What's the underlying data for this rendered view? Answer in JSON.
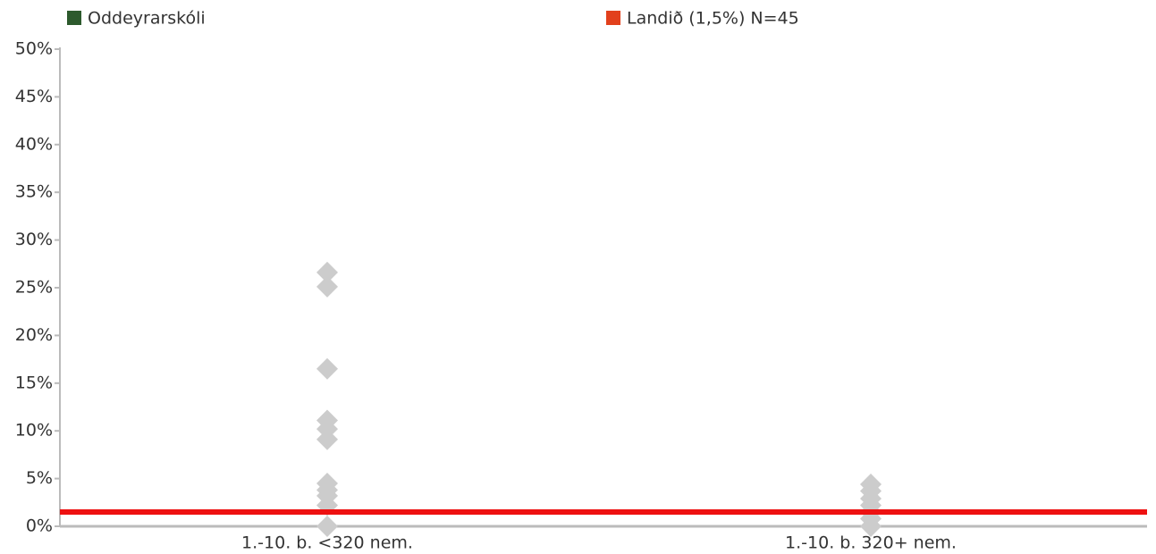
{
  "chart_data": {
    "type": "scatter",
    "categories": [
      "1.-10. b. <320 nem.",
      "1.-10. b. 320+ nem."
    ],
    "values": [
      [
        26.6,
        25.1,
        16.5,
        11.1,
        10.2,
        9.1,
        4.5,
        3.8,
        3.2,
        2.2,
        0
      ],
      [
        4.4,
        3.7,
        2.9,
        2.2,
        1.5,
        0.8,
        0
      ]
    ],
    "color": "#cccccc",
    "legend": [
      {
        "name": "Oddeyrarskóli",
        "color": "#2d5a2d"
      },
      {
        "name": "Landið (1,5%) N=45",
        "color": "#e2401c"
      }
    ],
    "reference_line": {
      "value": 1.5,
      "color": "#ee1111"
    },
    "ylim": [
      0,
      50
    ],
    "yticks": [
      {
        "value": 0,
        "label": "0%"
      },
      {
        "value": 5,
        "label": "5%"
      },
      {
        "value": 10,
        "label": "10%"
      },
      {
        "value": 15,
        "label": "15%"
      },
      {
        "value": 20,
        "label": "20%"
      },
      {
        "value": 25,
        "label": "25%"
      },
      {
        "value": 30,
        "label": "30%"
      },
      {
        "value": 35,
        "label": "35%"
      },
      {
        "value": 40,
        "label": "40%"
      },
      {
        "value": 45,
        "label": "45%"
      },
      {
        "value": 50,
        "label": "50%"
      }
    ]
  }
}
